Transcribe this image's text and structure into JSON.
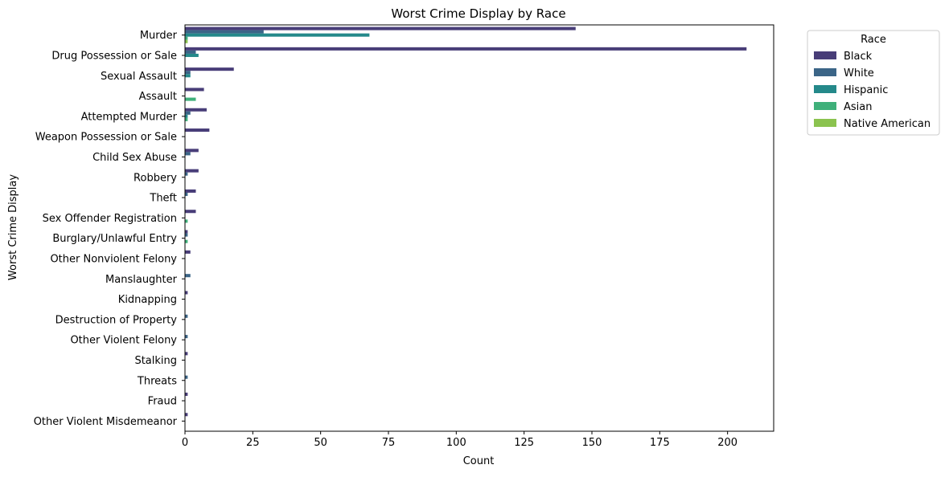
{
  "chart_data": {
    "type": "bar",
    "orientation": "horizontal",
    "title": "Worst Crime Display by Race",
    "xlabel": "Count",
    "ylabel": "Worst Crime Display",
    "xlim": [
      0,
      217
    ],
    "xticks": [
      0,
      25,
      50,
      75,
      100,
      125,
      150,
      175,
      200
    ],
    "grid": false,
    "legend_position": "outside-top-right",
    "legend_title": "Race",
    "categories": [
      "Murder",
      "Drug Possession or Sale",
      "Sexual Assault",
      "Assault",
      "Attempted Murder",
      "Weapon Possession or Sale",
      "Child Sex Abuse",
      "Robbery",
      "Theft",
      "Sex Offender Registration",
      "Burglary/Unlawful Entry",
      "Other Nonviolent Felony",
      "Manslaughter",
      "Kidnapping",
      "Destruction of Property",
      "Other Violent Felony",
      "Stalking",
      "Threats",
      "Fraud",
      "Other Violent Misdemeanor"
    ],
    "series": [
      {
        "name": "Black",
        "color": "#483d78",
        "values": [
          144,
          207,
          18,
          7,
          8,
          9,
          5,
          5,
          4,
          4,
          1,
          2,
          0,
          1,
          0,
          0,
          1,
          0,
          1,
          1
        ]
      },
      {
        "name": "White",
        "color": "#3b6587",
        "values": [
          29,
          4,
          2,
          0,
          2,
          0,
          2,
          1,
          1,
          0,
          1,
          0,
          2,
          0,
          1,
          1,
          0,
          1,
          0,
          0
        ]
      },
      {
        "name": "Hispanic",
        "color": "#24898a",
        "values": [
          68,
          5,
          2,
          0,
          1,
          0,
          0,
          0,
          0,
          0,
          0,
          0,
          0,
          0,
          0,
          0,
          0,
          0,
          0,
          0
        ]
      },
      {
        "name": "Asian",
        "color": "#3fb07a",
        "values": [
          1,
          0,
          0,
          4,
          1,
          0,
          0,
          0,
          0,
          1,
          1,
          0,
          0,
          0,
          0,
          0,
          0,
          0,
          0,
          0
        ]
      },
      {
        "name": "Native American",
        "color": "#8bc34f",
        "values": [
          1,
          0,
          0,
          0,
          0,
          0,
          0,
          0,
          0,
          0,
          0,
          0,
          0,
          0,
          0,
          0,
          0,
          0,
          0,
          0
        ]
      }
    ]
  }
}
